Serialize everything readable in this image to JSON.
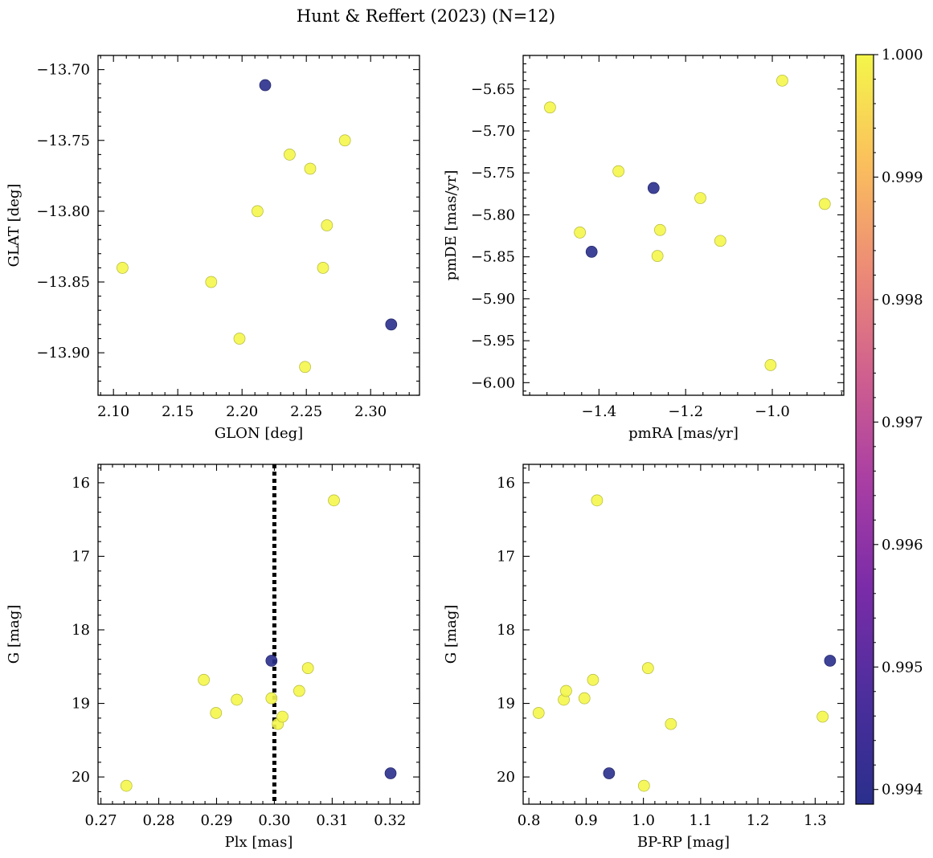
{
  "suptitle": "Hunt & Reffert (2023) (N=12)",
  "colorbar": {
    "colormap": "plasma",
    "range": [
      0.99388,
      1.0
    ],
    "ticks": [
      0.994,
      0.995,
      0.996,
      0.997,
      0.998,
      0.999,
      1.0
    ],
    "tick_labels": [
      "0.994",
      "0.995",
      "0.996",
      "0.997",
      "0.998",
      "0.999",
      "1.000"
    ]
  },
  "chart_data": [
    {
      "type": "scatter",
      "title": "",
      "xlabel": "GLON [deg]",
      "ylabel": "GLAT [deg]",
      "xlim": [
        2.088,
        2.338
      ],
      "ylim": [
        -13.93,
        -13.69
      ],
      "xticks": [
        2.1,
        2.15,
        2.2,
        2.25,
        2.3
      ],
      "xtick_labels": [
        "2.10",
        "2.15",
        "2.20",
        "2.25",
        "2.30"
      ],
      "yticks": [
        -13.7,
        -13.75,
        -13.8,
        -13.85,
        -13.9
      ],
      "ytick_labels": [
        "−13.70",
        "−13.75",
        "−13.80",
        "−13.85",
        "−13.90"
      ],
      "points": [
        {
          "x": 2.107,
          "y": -13.84,
          "c": 1.0
        },
        {
          "x": 2.176,
          "y": -13.85,
          "c": 1.0
        },
        {
          "x": 2.198,
          "y": -13.89,
          "c": 1.0
        },
        {
          "x": 2.212,
          "y": -13.8,
          "c": 1.0
        },
        {
          "x": 2.218,
          "y": -13.711,
          "c": 0.99388
        },
        {
          "x": 2.237,
          "y": -13.76,
          "c": 1.0
        },
        {
          "x": 2.249,
          "y": -13.91,
          "c": 1.0
        },
        {
          "x": 2.253,
          "y": -13.77,
          "c": 1.0
        },
        {
          "x": 2.263,
          "y": -13.84,
          "c": 1.0
        },
        {
          "x": 2.266,
          "y": -13.81,
          "c": 1.0
        },
        {
          "x": 2.28,
          "y": -13.75,
          "c": 1.0
        },
        {
          "x": 2.316,
          "y": -13.88,
          "c": 0.99388
        }
      ]
    },
    {
      "type": "scatter",
      "title": "",
      "xlabel": "pmRA [mas/yr]",
      "ylabel": "pmDE [mas/yr]",
      "xlim": [
        -1.575,
        -0.835
      ],
      "ylim": [
        -6.015,
        -5.61
      ],
      "xticks": [
        -1.4,
        -1.2,
        -1.0
      ],
      "xtick_labels": [
        "−1.4",
        "−1.2",
        "−1.0"
      ],
      "yticks": [
        -5.65,
        -5.7,
        -5.75,
        -5.8,
        -5.85,
        -5.9,
        -5.95,
        -6.0
      ],
      "ytick_labels": [
        "−5.65",
        "−5.70",
        "−5.75",
        "−5.80",
        "−5.85",
        "−5.90",
        "−5.95",
        "−6.00"
      ],
      "points": [
        {
          "x": -1.513,
          "y": -5.672,
          "c": 1.0
        },
        {
          "x": -1.444,
          "y": -5.821,
          "c": 1.0
        },
        {
          "x": -1.417,
          "y": -5.844,
          "c": 0.99388
        },
        {
          "x": -1.355,
          "y": -5.748,
          "c": 1.0
        },
        {
          "x": -1.274,
          "y": -5.768,
          "c": 0.99388
        },
        {
          "x": -1.265,
          "y": -5.849,
          "c": 1.0
        },
        {
          "x": -1.259,
          "y": -5.818,
          "c": 1.0
        },
        {
          "x": -1.166,
          "y": -5.78,
          "c": 1.0
        },
        {
          "x": -1.12,
          "y": -5.831,
          "c": 1.0
        },
        {
          "x": -1.004,
          "y": -5.979,
          "c": 1.0
        },
        {
          "x": -0.977,
          "y": -5.64,
          "c": 1.0
        },
        {
          "x": -0.879,
          "y": -5.787,
          "c": 1.0
        }
      ]
    },
    {
      "type": "scatter",
      "title": "",
      "xlabel": "Plx [mas]",
      "ylabel": "G [mag]",
      "xlim": [
        0.2695,
        0.3251
      ],
      "ylim": [
        20.37,
        15.75
      ],
      "xticks": [
        0.27,
        0.28,
        0.29,
        0.3,
        0.31,
        0.32
      ],
      "xtick_labels": [
        "0.27",
        "0.28",
        "0.29",
        "0.30",
        "0.31",
        "0.32"
      ],
      "yticks": [
        16,
        17,
        18,
        19,
        20
      ],
      "ytick_labels": [
        "16",
        "17",
        "18",
        "19",
        "20"
      ],
      "vline": {
        "x": 0.3,
        "style": "dotted"
      },
      "points": [
        {
          "x": 0.2744,
          "y": 20.12,
          "c": 1.0
        },
        {
          "x": 0.2878,
          "y": 18.68,
          "c": 1.0
        },
        {
          "x": 0.2899,
          "y": 19.13,
          "c": 1.0
        },
        {
          "x": 0.2935,
          "y": 18.95,
          "c": 1.0
        },
        {
          "x": 0.2995,
          "y": 18.42,
          "c": 0.99388
        },
        {
          "x": 0.2995,
          "y": 18.93,
          "c": 1.0
        },
        {
          "x": 0.3006,
          "y": 19.28,
          "c": 1.0
        },
        {
          "x": 0.3014,
          "y": 19.18,
          "c": 1.0
        },
        {
          "x": 0.3043,
          "y": 18.83,
          "c": 1.0
        },
        {
          "x": 0.3058,
          "y": 18.52,
          "c": 1.0
        },
        {
          "x": 0.3103,
          "y": 16.24,
          "c": 1.0
        },
        {
          "x": 0.3201,
          "y": 19.95,
          "c": 0.99388
        }
      ]
    },
    {
      "type": "scatter",
      "title": "",
      "xlabel": "BP-RP [mag]",
      "ylabel": "G [mag]",
      "xlim": [
        0.79,
        1.35
      ],
      "ylim": [
        20.37,
        15.75
      ],
      "xticks": [
        0.8,
        0.9,
        1.0,
        1.1,
        1.2,
        1.3
      ],
      "xtick_labels": [
        "0.8",
        "0.9",
        "1.0",
        "1.1",
        "1.2",
        "1.3"
      ],
      "yticks": [
        16,
        17,
        18,
        19,
        20
      ],
      "ytick_labels": [
        "16",
        "17",
        "18",
        "19",
        "20"
      ],
      "points": [
        {
          "x": 0.817,
          "y": 19.13,
          "c": 1.0
        },
        {
          "x": 0.861,
          "y": 18.95,
          "c": 1.0
        },
        {
          "x": 0.865,
          "y": 18.83,
          "c": 1.0
        },
        {
          "x": 0.897,
          "y": 18.93,
          "c": 1.0
        },
        {
          "x": 0.912,
          "y": 18.68,
          "c": 1.0
        },
        {
          "x": 0.919,
          "y": 16.24,
          "c": 1.0
        },
        {
          "x": 0.94,
          "y": 19.95,
          "c": 0.99388
        },
        {
          "x": 1.001,
          "y": 20.12,
          "c": 1.0
        },
        {
          "x": 1.008,
          "y": 18.52,
          "c": 1.0
        },
        {
          "x": 1.048,
          "y": 19.28,
          "c": 1.0
        },
        {
          "x": 1.313,
          "y": 19.18,
          "c": 1.0
        },
        {
          "x": 1.326,
          "y": 18.42,
          "c": 0.99388
        }
      ]
    }
  ]
}
